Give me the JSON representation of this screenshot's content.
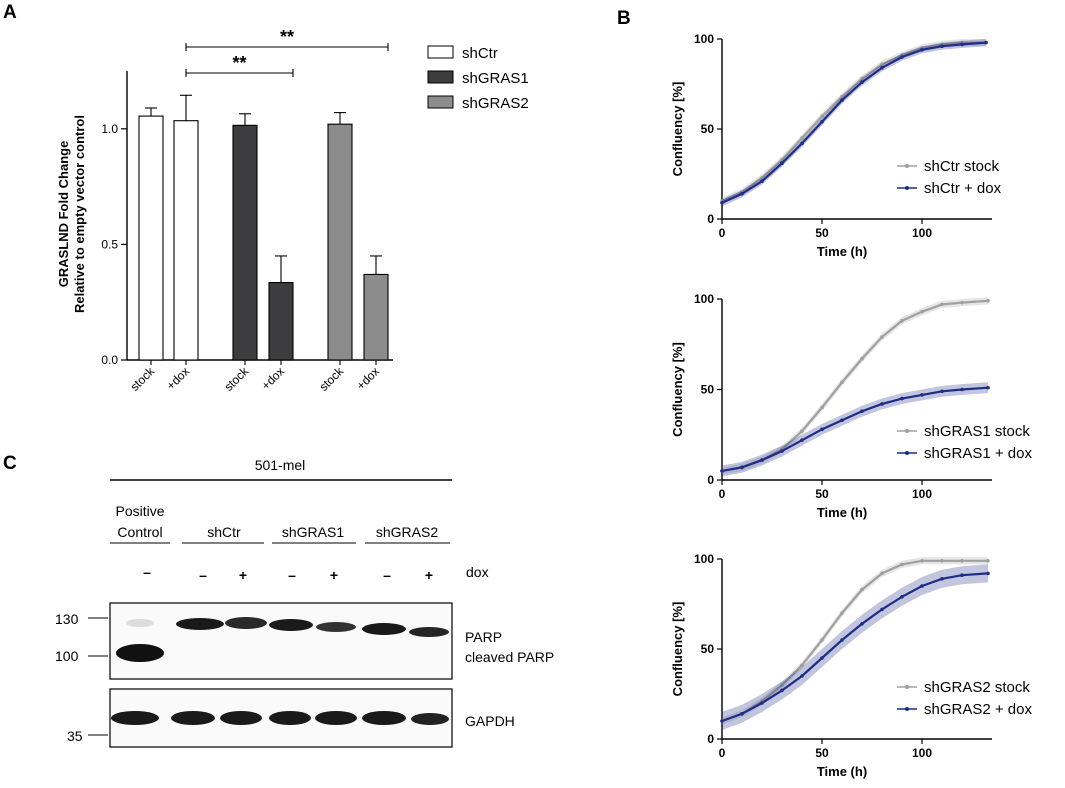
{
  "panels": {
    "a": "A",
    "b": "B",
    "c": "C"
  },
  "chart_data": [
    {
      "panel": "A",
      "type": "bar",
      "ylabel_line1": "GRASLND Fold Change",
      "ylabel_line2": "Relative to empty vector control",
      "ylim": [
        0,
        1.25
      ],
      "yticks": [
        "0.0",
        "0.5",
        "1.0"
      ],
      "categories": [
        "stock",
        "+dox",
        "stock",
        "+dox",
        "stock",
        "+dox"
      ],
      "values": [
        1.055,
        1.035,
        1.015,
        0.335,
        1.02,
        0.37
      ],
      "errors": [
        0.035,
        0.11,
        0.05,
        0.115,
        0.05,
        0.08
      ],
      "groups": [
        "shCtr",
        "shCtr",
        "shGRAS1",
        "shGRAS1",
        "shGRAS2",
        "shGRAS2"
      ],
      "legend": [
        {
          "label": "shCtr",
          "color": "#ffffff"
        },
        {
          "label": "shGRAS1",
          "color": "#3d3d3f"
        },
        {
          "label": "shGRAS2",
          "color": "#8c8c8c"
        }
      ],
      "significance": [
        {
          "label": "**",
          "from": 1,
          "to": 3
        },
        {
          "label": "**",
          "from": 1,
          "to": 5
        }
      ]
    },
    {
      "panel": "B1",
      "type": "line",
      "xlabel": "Time (h)",
      "ylabel": "Confluency [%]",
      "xlim": [
        0,
        135
      ],
      "ylim": [
        0,
        100
      ],
      "xticks": [
        "0",
        "50",
        "100"
      ],
      "yticks": [
        "0",
        "50",
        "100"
      ],
      "series": [
        {
          "name": "shCtr stock",
          "color": "#a0a0a0",
          "x": [
            0,
            10,
            20,
            30,
            40,
            50,
            60,
            70,
            80,
            90,
            100,
            110,
            120,
            132
          ],
          "y": [
            10,
            15,
            23,
            33,
            45,
            57,
            68,
            78,
            86,
            91,
            95,
            97,
            98,
            98
          ],
          "err": 2
        },
        {
          "name": "shCtr + dox",
          "color": "#1f2d86",
          "x": [
            0,
            10,
            20,
            30,
            40,
            50,
            60,
            70,
            80,
            90,
            100,
            110,
            120,
            132
          ],
          "y": [
            9,
            14,
            21,
            31,
            42,
            54,
            66,
            76,
            84,
            90,
            94,
            96,
            97,
            98
          ],
          "err": 2
        }
      ]
    },
    {
      "panel": "B2",
      "type": "line",
      "xlabel": "Time (h)",
      "ylabel": "Confluency [%]",
      "xlim": [
        0,
        135
      ],
      "ylim": [
        0,
        100
      ],
      "xticks": [
        "0",
        "50",
        "100"
      ],
      "yticks": [
        "0",
        "50",
        "100"
      ],
      "series": [
        {
          "name": "shGRAS1 stock",
          "color": "#a0a0a0",
          "x": [
            0,
            10,
            20,
            30,
            40,
            50,
            60,
            70,
            80,
            90,
            100,
            110,
            120,
            133
          ],
          "y": [
            5,
            7,
            11,
            17,
            27,
            40,
            54,
            67,
            79,
            88,
            93,
            97,
            98,
            99
          ],
          "err": 2
        },
        {
          "name": "shGRAS1 + dox",
          "color": "#1f2d86",
          "x": [
            0,
            10,
            20,
            30,
            40,
            50,
            60,
            70,
            80,
            90,
            100,
            110,
            120,
            133
          ],
          "y": [
            5,
            7,
            11,
            16,
            22,
            28,
            33,
            38,
            42,
            45,
            47,
            49,
            50,
            51
          ],
          "err": 3
        }
      ]
    },
    {
      "panel": "B3",
      "type": "line",
      "xlabel": "Time (h)",
      "ylabel": "Confluency [%]",
      "xlim": [
        0,
        135
      ],
      "ylim": [
        0,
        100
      ],
      "xticks": [
        "0",
        "50",
        "100"
      ],
      "yticks": [
        "0",
        "50",
        "100"
      ],
      "series": [
        {
          "name": "shGRAS2 stock",
          "color": "#a0a0a0",
          "x": [
            0,
            10,
            20,
            30,
            40,
            50,
            60,
            70,
            80,
            90,
            100,
            110,
            120,
            133
          ],
          "y": [
            10,
            14,
            21,
            30,
            41,
            55,
            70,
            83,
            92,
            97,
            99,
            99,
            99,
            99
          ],
          "err": 2
        },
        {
          "name": "shGRAS2 + dox",
          "color": "#1f2d86",
          "x": [
            0,
            10,
            20,
            30,
            40,
            50,
            60,
            70,
            80,
            90,
            100,
            110,
            120,
            133
          ],
          "y": [
            10,
            14,
            20,
            27,
            35,
            45,
            55,
            64,
            72,
            79,
            85,
            89,
            91,
            92
          ],
          "err": 5
        }
      ]
    }
  ],
  "western": {
    "cell_line": "501-mel",
    "positive_control_line1": "Positive",
    "positive_control_line2": "Control",
    "groups": [
      "shCtr",
      "shGRAS1",
      "shGRAS2"
    ],
    "dox_signs": [
      "–",
      "–",
      "+",
      "–",
      "+",
      "–",
      "+"
    ],
    "dox_label": "dox",
    "markers": [
      "130",
      "100",
      "35"
    ],
    "blot1_labels": [
      "PARP",
      "cleaved PARP"
    ],
    "blot2_label": "GAPDH"
  }
}
